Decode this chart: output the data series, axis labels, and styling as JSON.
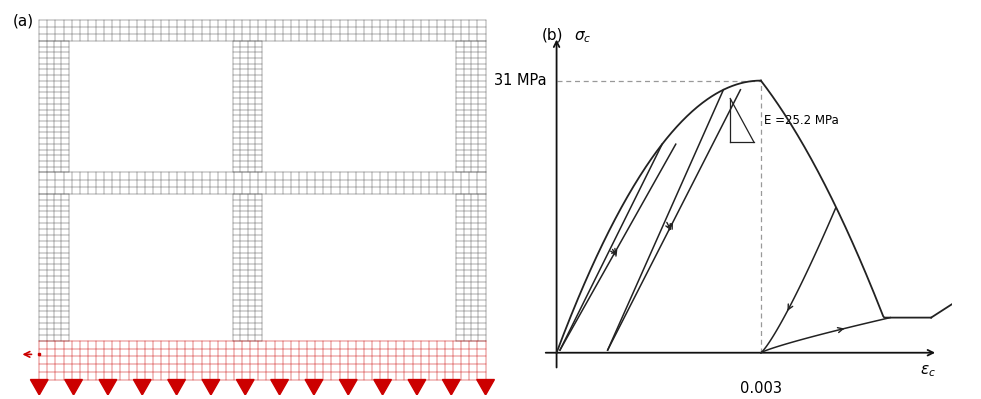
{
  "fig_width": 9.81,
  "fig_height": 3.99,
  "panel_a_label": "(a)",
  "panel_b_label": "(b)",
  "label_fontsize": 11,
  "mesh_color": "#555555",
  "mesh_linewidth": 0.35,
  "red_color": "#cc0000",
  "axis_color": "#111111",
  "curve_color": "#222222",
  "dashed_color": "#999999",
  "stress_peak": 31.0,
  "stress_label": "31 MPa",
  "strain_peak": 0.003,
  "strain_label": "0.003",
  "E_label": "E =25.2 MPa"
}
